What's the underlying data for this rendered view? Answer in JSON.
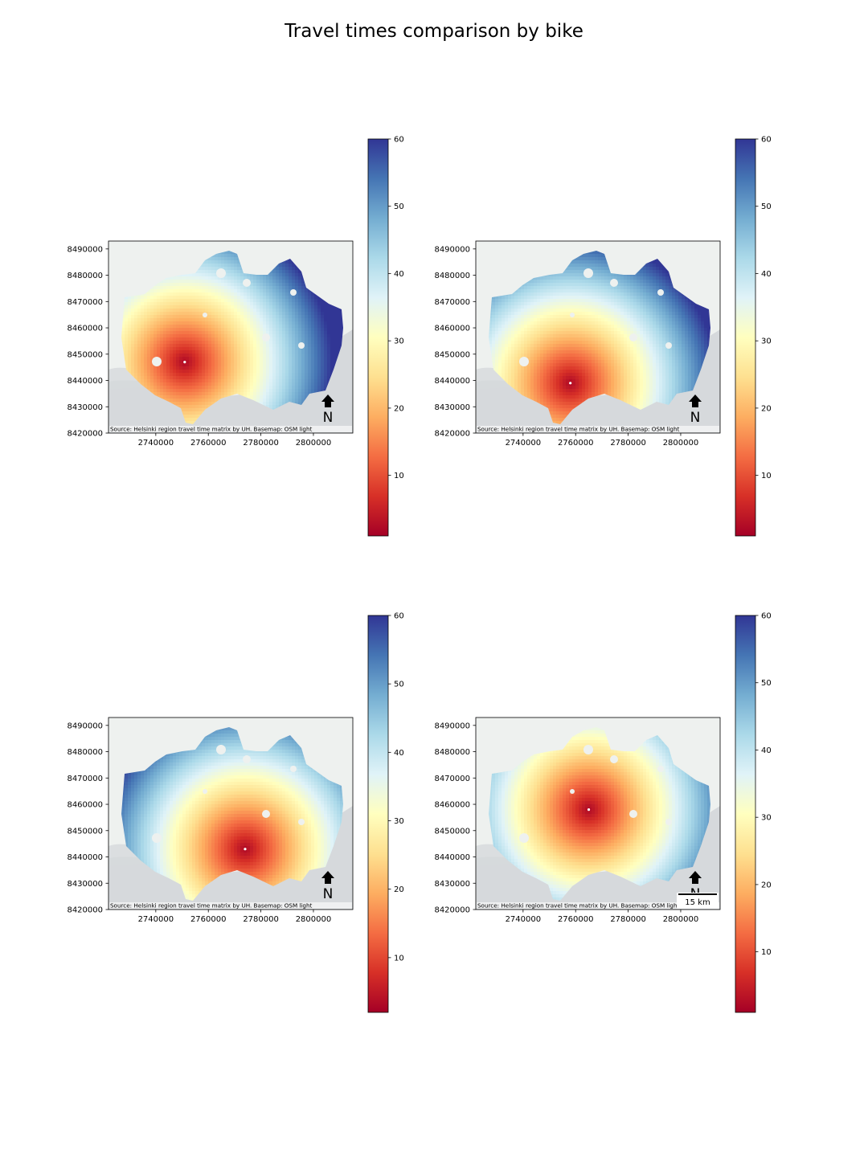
{
  "title": "Travel times comparison by bike",
  "colors": {
    "background": "#ffffff",
    "water": "#d6d9dc",
    "land": "#eef1ef",
    "high": "#313695",
    "mid": "#ffffbf",
    "low": "#a50026"
  },
  "shared": {
    "attribution": "Source: Helsinki region travel time matrix by UH. Basemap: OSM light",
    "north_label": "N",
    "scalebar_label": "15 km",
    "x_ticks": [
      "2740000",
      "2760000",
      "2780000",
      "2800000"
    ],
    "y_ticks": [
      "8490000",
      "8480000",
      "8470000",
      "8460000",
      "8450000",
      "8440000",
      "8430000",
      "8420000"
    ],
    "colorbar_ticks": [
      "60",
      "50",
      "40",
      "30",
      "20",
      "10"
    ]
  },
  "chart_data": [
    {
      "type": "heatmap",
      "title": "",
      "x_range": [
        2722000,
        2815000
      ],
      "y_range": [
        8420000,
        8493000
      ],
      "colorbar_range": [
        1,
        60
      ],
      "colormap": "RdYlBu",
      "origin": [
        2751000,
        8447000
      ],
      "has_scalebar": false
    },
    {
      "type": "heatmap",
      "title": "",
      "x_range": [
        2722000,
        2815000
      ],
      "y_range": [
        8420000,
        8493000
      ],
      "colorbar_range": [
        1,
        60
      ],
      "colormap": "RdYlBu",
      "origin": [
        2758000,
        8439000
      ],
      "has_scalebar": false
    },
    {
      "type": "heatmap",
      "title": "",
      "x_range": [
        2722000,
        2815000
      ],
      "y_range": [
        8420000,
        8493000
      ],
      "colorbar_range": [
        2,
        60
      ],
      "colormap": "RdYlBu",
      "origin": [
        2774000,
        8443000
      ],
      "has_scalebar": false
    },
    {
      "type": "heatmap",
      "title": "",
      "x_range": [
        2722000,
        2815000
      ],
      "y_range": [
        8420000,
        8493000
      ],
      "colorbar_range": [
        1,
        60
      ],
      "colormap": "RdYlBu",
      "origin": [
        2765000,
        8458000
      ],
      "has_scalebar": true
    }
  ]
}
